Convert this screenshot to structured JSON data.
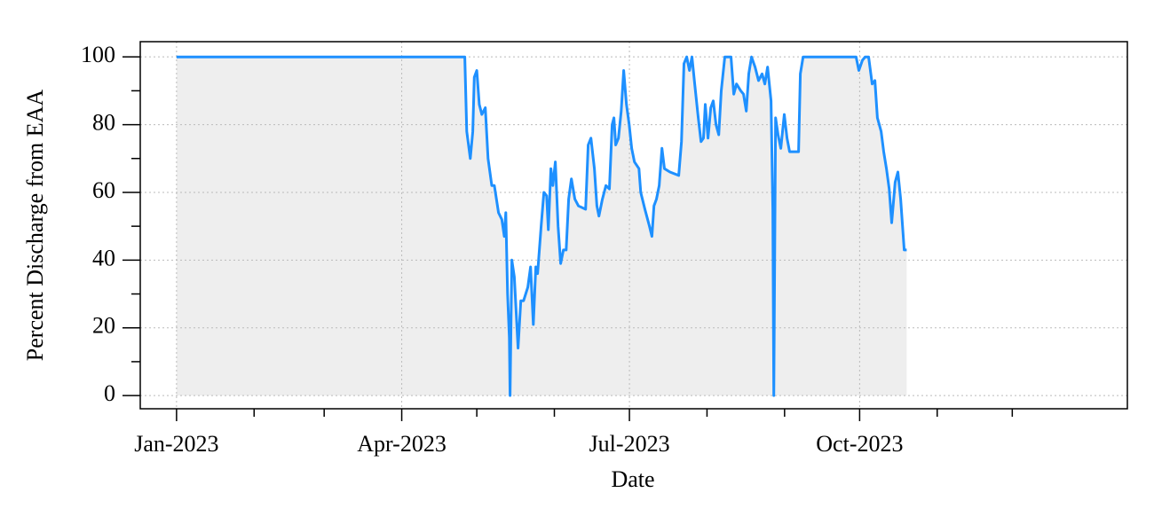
{
  "chart_data": {
    "type": "area-line",
    "x_label": "Date",
    "y_label": "Percent Discharge from EAA",
    "x": [
      0,
      115.2,
      116,
      117.4,
      118.4,
      119,
      120,
      121,
      122,
      123.4,
      124.5,
      126,
      127,
      128.7,
      130,
      131,
      131.6,
      132.3,
      133,
      133.3,
      134,
      135,
      136.5,
      137.6,
      138.7,
      140.4,
      141.5,
      142.6,
      143.6,
      144.3,
      145.7,
      146.8,
      147.9,
      148.6,
      149.6,
      150.4,
      151.4,
      152.5,
      153.5,
      154.6,
      155.7,
      156.7,
      157.8,
      159.2,
      160.6,
      163.5,
      164.5,
      165.6,
      167,
      168,
      168.8,
      170.2,
      171.6,
      173,
      174.1,
      174.8,
      175.5,
      176.6,
      177.7,
      178.7,
      179.8,
      180.9,
      181.9,
      183,
      184.8,
      185.5,
      187.2,
      189,
      190,
      190.8,
      191.8,
      192.9,
      194,
      195,
      197.2,
      200.7,
      201.8,
      202.8,
      203.9,
      205,
      206,
      207.1,
      208.5,
      209.6,
      210.6,
      211.3,
      212.4,
      213.5,
      214.5,
      215.6,
      216.7,
      217.7,
      219.1,
      221.6,
      222.7,
      223.8,
      225.5,
      226.6,
      227.7,
      228.7,
      229.8,
      231.2,
      232.6,
      234,
      235.1,
      236.2,
      237.6,
      238.3,
      238.7,
      239.4,
      240.4,
      241.5,
      242.9,
      244,
      245,
      246.5,
      248.6,
      249.3,
      250.4,
      271.6,
      272.7,
      274.1,
      275.2,
      276.6,
      278,
      279.1,
      280.1,
      281.6,
      282.6,
      283.7,
      284.8,
      285.8,
      287.2,
      288.3,
      289.4,
      290.8,
      291.8
    ],
    "series": [
      {
        "color": "#1e90ff",
        "fill": "#eeeeee",
        "values": [
          100,
          100,
          78,
          70,
          78,
          94,
          96,
          86,
          83,
          85,
          70,
          62,
          62,
          54,
          52,
          47,
          54,
          30,
          17,
          0,
          40,
          35,
          14,
          28,
          28,
          32,
          38,
          21,
          38,
          36,
          50,
          60,
          59,
          49,
          67,
          62,
          69,
          50,
          39,
          43,
          43,
          58,
          64,
          58,
          56,
          55,
          74,
          76,
          67,
          56,
          53,
          58,
          62,
          61,
          80,
          82,
          74,
          76,
          84,
          96,
          86,
          80,
          73,
          69,
          67,
          60,
          55,
          50,
          47,
          56,
          58,
          62,
          73,
          67,
          66,
          65,
          75,
          98,
          100,
          96,
          100,
          92,
          82,
          75,
          76,
          86,
          76,
          85,
          87,
          80,
          77,
          90,
          100,
          100,
          89,
          92,
          90,
          89,
          84,
          95,
          100,
          97,
          93,
          95,
          92,
          97,
          87,
          55,
          0,
          82,
          77,
          73,
          83,
          76,
          72,
          72,
          72,
          95,
          100,
          100,
          96,
          99,
          100,
          100,
          92,
          93,
          82,
          78,
          72,
          67,
          61,
          51,
          63,
          66,
          58,
          43,
          43
        ]
      }
    ],
    "xlim": [
      -14.5,
      380
    ],
    "xticks": [
      {
        "value": 0,
        "label": "Jan-2023"
      },
      {
        "value": 90,
        "label": "Apr-2023"
      },
      {
        "value": 181,
        "label": "Jul-2023"
      },
      {
        "value": 273,
        "label": "Oct-2023"
      }
    ],
    "xminorticks": [
      31,
      59,
      120,
      151,
      212,
      243,
      304,
      334
    ],
    "ylim": [
      -3.9,
      104.5
    ],
    "yticks": [
      0,
      20,
      40,
      60,
      80,
      100
    ],
    "yminorticks": [
      10,
      30,
      50,
      70,
      90
    ],
    "grid": true
  }
}
